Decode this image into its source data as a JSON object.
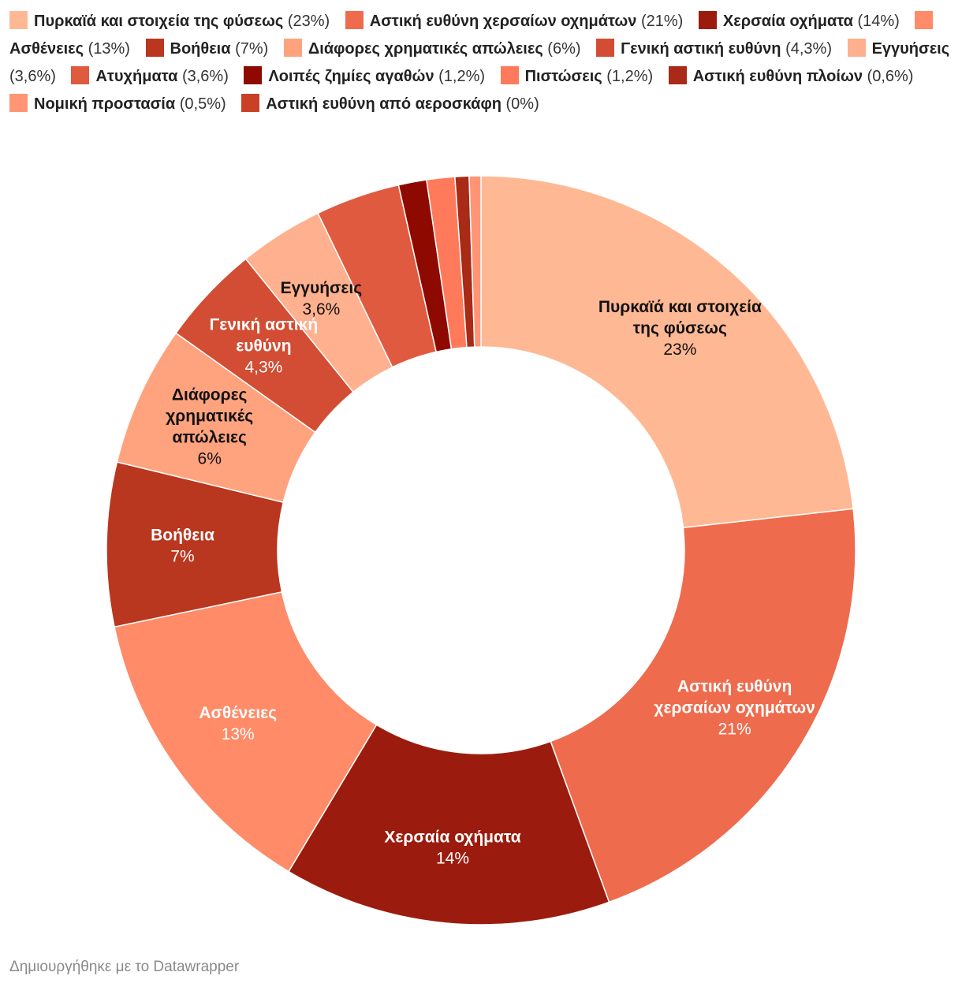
{
  "chart_data": {
    "type": "pie",
    "donut": true,
    "categories": [
      "Πυρκαϊά και στοιχεία της φύσεως",
      "Αστική ευθύνη χερσαίων οχημάτων",
      "Χερσαία οχήματα",
      "Ασθένειες",
      "Βοήθεια",
      "Διάφορες χρηματικές απώλειες",
      "Γενική αστική ευθύνη",
      "Εγγυήσεις",
      "Ατυχήματα",
      "Λοιπές ζημίες αγαθών",
      "Πιστώσεις",
      "Αστική ευθύνη πλοίων",
      "Νομική προστασία",
      "Αστική ευθύνη από αεροσκάφη"
    ],
    "values": [
      23,
      21,
      14,
      13,
      7,
      6,
      4.3,
      3.6,
      3.6,
      1.2,
      1.2,
      0.6,
      0.5,
      0
    ],
    "value_labels": [
      "23%",
      "21%",
      "14%",
      "13%",
      "7%",
      "6%",
      "4,3%",
      "3,6%",
      "3,6%",
      "1,2%",
      "1,2%",
      "0,6%",
      "0,5%",
      "0%"
    ],
    "colors": [
      "#ffb894",
      "#ef6b4d",
      "#9b1c0e",
      "#ff8b68",
      "#b9361f",
      "#ffa37f",
      "#d24d33",
      "#ffb08e",
      "#e05a40",
      "#8e0a00",
      "#ff7a5a",
      "#a82a17",
      "#ff9575",
      "#c94027"
    ],
    "slice_labels": [
      {
        "index": 0,
        "lines": [
          "Πυρκαϊά και στοιχεία",
          "της φύσεως"
        ],
        "value": "23%",
        "text_color": "#111111"
      },
      {
        "index": 1,
        "lines": [
          "Αστική ευθύνη",
          "χερσαίων οχημάτων"
        ],
        "value": "21%",
        "text_color": "#ffffff"
      },
      {
        "index": 2,
        "lines": [
          "Χερσαία οχήματα"
        ],
        "value": "14%",
        "text_color": "#ffffff"
      },
      {
        "index": 3,
        "lines": [
          "Ασθένειες"
        ],
        "value": "13%",
        "text_color": "#ffffff"
      },
      {
        "index": 4,
        "lines": [
          "Βοήθεια"
        ],
        "value": "7%",
        "text_color": "#ffffff"
      },
      {
        "index": 5,
        "lines": [
          "Διάφορες",
          "χρηματικές",
          "απώλειες"
        ],
        "value": "6%",
        "text_color": "#111111"
      },
      {
        "index": 6,
        "lines": [
          "Γενική αστική",
          "ευθύνη"
        ],
        "value": "4,3%",
        "text_color": "#ffffff"
      },
      {
        "index": 7,
        "lines": [
          "Εγγυήσεις"
        ],
        "value": "3,6%",
        "text_color": "#111111"
      }
    ],
    "legend_position": "top"
  },
  "credit": "Δημιουργήθηκε με το Datawrapper"
}
